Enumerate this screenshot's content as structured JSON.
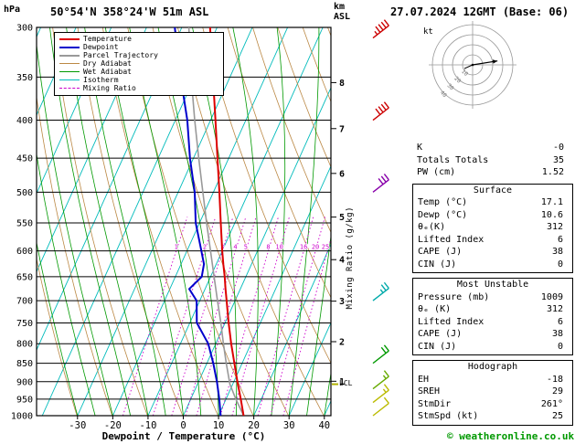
{
  "header": {
    "pressure_unit": "hPa",
    "station": "50°54'N 358°24'W 51m ASL",
    "datetime": "27.07.2024 12GMT (Base: 06)",
    "altitude_unit_km": "km",
    "altitude_unit_asl": "ASL"
  },
  "legend": [
    {
      "label": "Temperature",
      "color": "#dd0000",
      "style": "solid",
      "weight": 2
    },
    {
      "label": "Dewpoint",
      "color": "#0000cc",
      "style": "solid",
      "weight": 2
    },
    {
      "label": "Parcel Trajectory",
      "color": "#999999",
      "style": "solid",
      "weight": 2
    },
    {
      "label": "Dry Adiabat",
      "color": "#bb8844",
      "style": "solid",
      "weight": 1
    },
    {
      "label": "Wet Adiabat",
      "color": "#009900",
      "style": "solid",
      "weight": 1
    },
    {
      "label": "Isotherm",
      "color": "#00bbbb",
      "style": "solid",
      "weight": 1
    },
    {
      "label": "Mixing Ratio",
      "color": "#cc00cc",
      "style": "dashed",
      "weight": 1
    }
  ],
  "axes": {
    "pressure_ticks": [
      300,
      350,
      400,
      450,
      500,
      550,
      600,
      650,
      700,
      750,
      800,
      850,
      900,
      950,
      1000
    ],
    "temp_ticks": [
      -30,
      -20,
      -10,
      0,
      10,
      20,
      30,
      40
    ],
    "km_ticks": [
      1,
      2,
      3,
      4,
      5,
      6,
      7,
      8
    ],
    "xlabel": "Dewpoint / Temperature (°C)",
    "mixing_label": "Mixing Ratio (g/kg)",
    "lcl_label": "LCL"
  },
  "chart_data": {
    "type": "skewt-logp",
    "skew": 0.45,
    "isotherm_step_c": 10,
    "pressure_range_hpa": [
      300,
      1000
    ],
    "temp_axis_range_c": [
      -30,
      40
    ],
    "colors": {
      "temperature": "#dd0000",
      "dewpoint": "#0000cc",
      "parcel": "#999999",
      "dry_adiabat": "#bb8844",
      "wet_adiabat": "#009900",
      "isotherm": "#00bbbb",
      "mixing_ratio": "#cc00cc"
    },
    "pressure_hpa": [
      1000,
      950,
      900,
      850,
      800,
      750,
      700,
      675,
      650,
      625,
      600,
      550,
      500,
      450,
      400,
      350,
      300
    ],
    "temperature_c": [
      17.1,
      14.2,
      11.0,
      7.8,
      4.4,
      1.0,
      -2.4,
      -4.2,
      -6.0,
      -8.0,
      -10.0,
      -14.0,
      -18.3,
      -23.2,
      -28.6,
      -34.8,
      -42.0
    ],
    "dewpoint_c": [
      10.6,
      8.1,
      5.2,
      1.8,
      -2.1,
      -8.0,
      -10.9,
      -14.5,
      -12.5,
      -13.5,
      -15.9,
      -21.1,
      -25.3,
      -31.0,
      -36.6,
      -44.0,
      -52.0
    ],
    "parcel": {
      "pressure_hpa": [
        1000,
        950,
        907,
        850,
        800,
        750,
        700,
        650,
        600,
        550,
        500,
        450,
        400,
        350,
        300
      ],
      "temp_c": [
        17.1,
        12.8,
        9.2,
        5.5,
        2.2,
        -1.2,
        -5.0,
        -9.0,
        -13.3,
        -18.0,
        -23.0,
        -28.5,
        -34.5,
        -41.0,
        -48.0
      ],
      "lcl_hpa": 907
    },
    "mixing_ratio_lines_gkg": [
      1,
      2,
      3,
      4,
      5,
      8,
      10,
      16,
      20,
      25
    ],
    "wind_barbs": [
      {
        "p": 310,
        "color": "#cc0000",
        "speed_kt": 45
      },
      {
        "p": 400,
        "color": "#cc0000",
        "speed_kt": 40
      },
      {
        "p": 500,
        "color": "#8800aa",
        "speed_kt": 30
      },
      {
        "p": 700,
        "color": "#00aaaa",
        "speed_kt": 25
      },
      {
        "p": 850,
        "color": "#009900",
        "speed_kt": 20
      },
      {
        "p": 920,
        "color": "#66aa00",
        "speed_kt": 15
      },
      {
        "p": 960,
        "color": "#bbbb00",
        "speed_kt": 15
      },
      {
        "p": 1000,
        "color": "#bbbb00",
        "speed_kt": 10
      }
    ]
  },
  "hodograph": {
    "unit_label": "kt",
    "rings_kt": [
      10,
      20,
      30,
      40
    ],
    "storm_dir_deg": 261,
    "storm_spd_kt": 25
  },
  "panel": {
    "stats": [
      {
        "label": "K",
        "value": "-0"
      },
      {
        "label": "Totals Totals",
        "value": "35"
      },
      {
        "label": "PW (cm)",
        "value": "1.52"
      }
    ],
    "sections": [
      {
        "title": "Surface",
        "rows": [
          [
            "Temp (°C)",
            "17.1"
          ],
          [
            "Dewp (°C)",
            "10.6"
          ],
          [
            "θₑ(K)",
            "312"
          ],
          [
            "Lifted Index",
            "6"
          ],
          [
            "CAPE (J)",
            "38"
          ],
          [
            "CIN (J)",
            "0"
          ]
        ]
      },
      {
        "title": "Most Unstable",
        "rows": [
          [
            "Pressure (mb)",
            "1009"
          ],
          [
            "θₑ (K)",
            "312"
          ],
          [
            "Lifted Index",
            "6"
          ],
          [
            "CAPE (J)",
            "38"
          ],
          [
            "CIN (J)",
            "0"
          ]
        ]
      },
      {
        "title": "Hodograph",
        "rows": [
          [
            "EH",
            "-18"
          ],
          [
            "SREH",
            "29"
          ],
          [
            "StmDir",
            "261°"
          ],
          [
            "StmSpd (kt)",
            "25"
          ]
        ]
      }
    ]
  },
  "footer": {
    "copyright": "© weatheronline.co.uk"
  }
}
